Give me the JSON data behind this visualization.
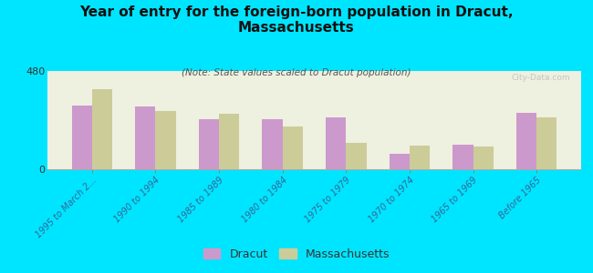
{
  "title": "Year of entry for the foreign-born population in Dracut,\nMassachusetts",
  "subtitle": "(Note: State values scaled to Dracut population)",
  "categories": [
    "1995 to March 2...",
    "1990 to 1994",
    "1985 to 1989",
    "1980 to 1984",
    "1975 to 1979",
    "1970 to 1974",
    "1965 to 1969",
    "Before 1965"
  ],
  "dracut_values": [
    310,
    305,
    245,
    245,
    255,
    75,
    120,
    275
  ],
  "mass_values": [
    390,
    285,
    270,
    210,
    130,
    115,
    110,
    255
  ],
  "dracut_color": "#cc99cc",
  "mass_color": "#cccc99",
  "background_color": "#00e5ff",
  "plot_bg_color": "#eef0e0",
  "ylim": [
    0,
    480
  ],
  "yticks": [
    0,
    480
  ],
  "watermark": "City-Data.com",
  "legend_dracut": "Dracut",
  "legend_mass": "Massachusetts",
  "title_fontsize": 11,
  "subtitle_fontsize": 7.5
}
